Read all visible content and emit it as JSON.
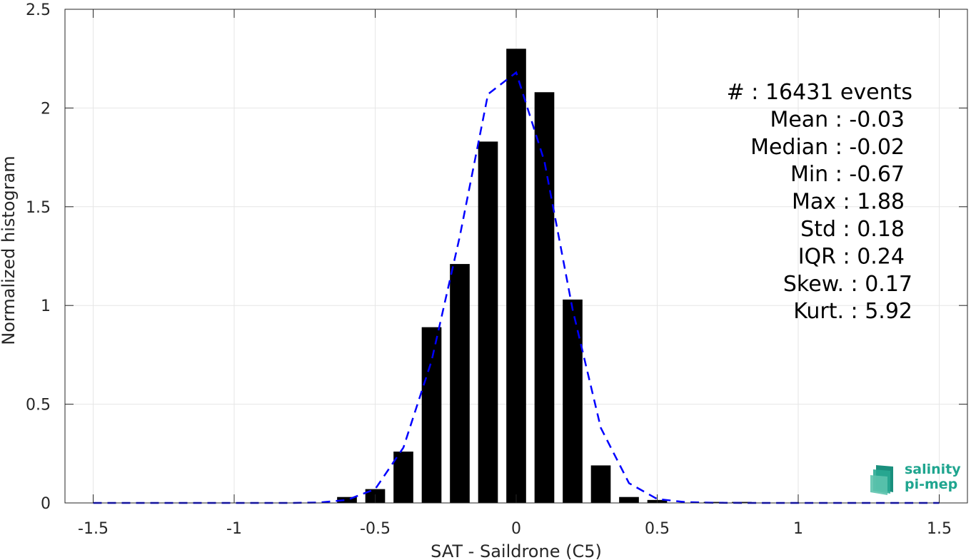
{
  "chart_data": {
    "type": "bar",
    "xlabel": "SAT - Saildrone (C5)",
    "ylabel": "Normalized histogram",
    "xlim": [
      -1.6,
      1.6
    ],
    "ylim": [
      0,
      2.5
    ],
    "grid": true,
    "xticks": [
      -1.5,
      -1,
      -0.5,
      0,
      0.5,
      1,
      1.5
    ],
    "xtick_labels": [
      "-1.5",
      "-1",
      "-0.5",
      "0",
      "0.5",
      "1",
      "1.5"
    ],
    "yticks": [
      0,
      0.5,
      1,
      1.5,
      2,
      2.5
    ],
    "ytick_labels": [
      "0",
      "0.5",
      "1",
      "1.5",
      "2",
      "2.5"
    ],
    "bar_width": 0.07,
    "bars": {
      "x": [
        -0.6,
        -0.5,
        -0.4,
        -0.3,
        -0.2,
        -0.1,
        0.0,
        0.1,
        0.2,
        0.3,
        0.4,
        0.5,
        0.7,
        0.8
      ],
      "values": [
        0.03,
        0.07,
        0.26,
        0.89,
        1.21,
        1.83,
        2.3,
        2.08,
        1.03,
        0.19,
        0.03,
        0.015,
        0.005,
        0.005
      ],
      "color": "#000000"
    },
    "fit_line": {
      "x": [
        -1.5,
        -1.4,
        -1.3,
        -1.2,
        -1.1,
        -1.0,
        -0.9,
        -0.8,
        -0.7,
        -0.6,
        -0.5,
        -0.4,
        -0.3,
        -0.2,
        -0.1,
        0.0,
        0.1,
        0.2,
        0.3,
        0.4,
        0.5,
        0.6,
        0.7,
        0.8,
        0.9,
        1.0,
        1.1,
        1.2,
        1.3,
        1.4,
        1.5
      ],
      "values": [
        0,
        0,
        0,
        0,
        0,
        0,
        0,
        0,
        0.002,
        0.015,
        0.07,
        0.28,
        0.72,
        1.35,
        2.07,
        2.18,
        1.73,
        0.98,
        0.38,
        0.1,
        0.02,
        0.004,
        0.001,
        0,
        0,
        0,
        0,
        0,
        0,
        0,
        0
      ],
      "color": "#0000ff",
      "style": "dashed"
    },
    "stats": [
      "#  : 16431 events",
      "Mean : -0.03",
      "Median : -0.02",
      "Min : -0.67",
      "Max : 1.88",
      "Std : 0.18",
      "IQR : 0.24",
      "Skew. : 0.17",
      "Kurt. : 5.92"
    ]
  },
  "logo": {
    "line1": "salinity",
    "line2": "pi-mep",
    "color": "#1fa58f"
  }
}
